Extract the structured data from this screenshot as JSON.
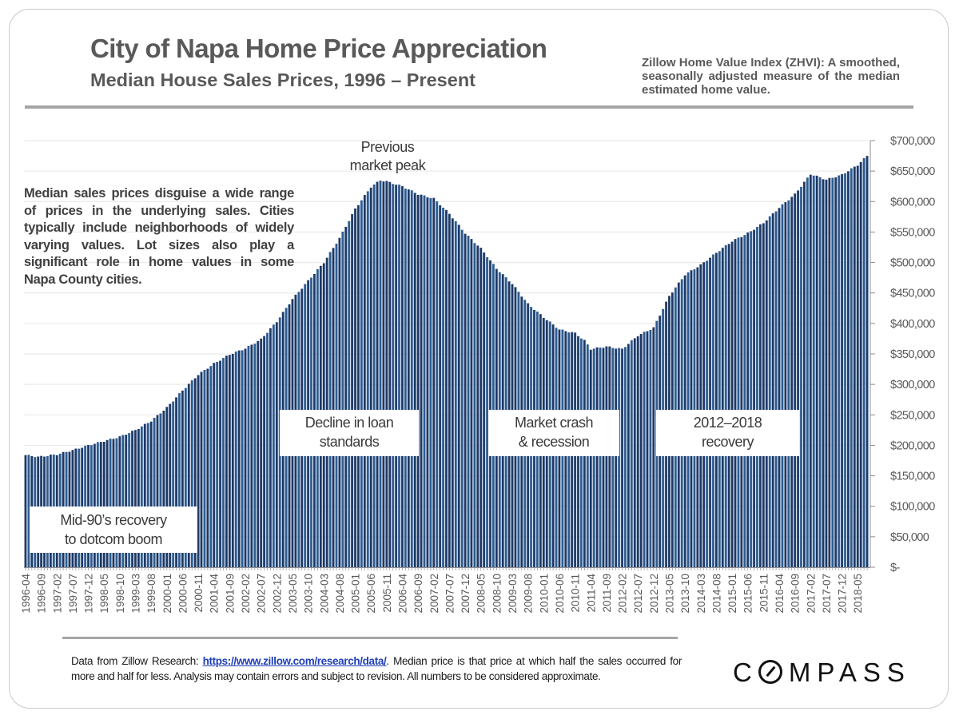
{
  "header": {
    "title": "City of Napa Home Price Appreciation",
    "subtitle": "Median House Sales Prices, 1996 – Present",
    "zhvi_note": "Zillow Home Value Index (ZHVI): A smoothed, seasonally adjusted measure of the median estimated home value."
  },
  "side_note": "Median sales prices disguise a wide range of prices in the underlying sales. Cities typically include neighborhoods of widely varying values. Lot sizes also play a significant role in home values in some Napa County cities.",
  "annotations": {
    "peak": [
      "Previous",
      "market peak"
    ],
    "mid90s": [
      "Mid-90’s recovery",
      "to dotcom boom"
    ],
    "loan": [
      "Decline in loan",
      "standards"
    ],
    "crash": [
      "Market crash",
      "& recession"
    ],
    "recovery": [
      "2012–2018",
      "recovery"
    ]
  },
  "footer": {
    "note_prefix": "Data from Zillow Research: ",
    "link_text": "https://www.zillow.com/research/data/",
    "note_suffix": ". Median price is that price at which half the sales occurred for more and half for less. Analysis may contain errors and subject to revision. All numbers to be considered approximate.",
    "logo": "COMPASS"
  },
  "colors": {
    "bar_dark": "#1f3864",
    "bar_light": "#9dc3e6",
    "bar_mid": "#2e5b8f",
    "grid": "#e6e6e6",
    "text_gray": "#595959"
  },
  "chart_data": {
    "type": "bar",
    "title": "City of Napa Home Price Appreciation",
    "subtitle": "Median House Sales Prices, 1996 – Present",
    "xlabel": "",
    "ylabel": "",
    "x_start": "1996-04",
    "x_end": "2018-08",
    "frequency": "monthly",
    "ylim": [
      0,
      700000
    ],
    "y_ticks": [
      0,
      50000,
      100000,
      150000,
      200000,
      250000,
      300000,
      350000,
      400000,
      450000,
      500000,
      550000,
      600000,
      650000,
      700000
    ],
    "y_tick_labels": [
      "$-",
      "$50,000",
      "$100,000",
      "$150,000",
      "$200,000",
      "$250,000",
      "$300,000",
      "$350,000",
      "$400,000",
      "$450,000",
      "$500,000",
      "$550,000",
      "$600,000",
      "$650,000",
      "$700,000"
    ],
    "y_axis_side": "right",
    "grid": true,
    "x_tick_labels": [
      "1996-04",
      "1996-09",
      "1997-02",
      "1997-07",
      "1997-12",
      "1998-05",
      "1998-10",
      "1999-03",
      "1999-08",
      "2000-01",
      "2000-06",
      "2000-11",
      "2001-04",
      "2001-09",
      "2002-02",
      "2002-07",
      "2002-12",
      "2003-05",
      "2003-10",
      "2004-03",
      "2004-08",
      "2005-01",
      "2005-06",
      "2005-11",
      "2006-04",
      "2006-09",
      "2007-02",
      "2007-07",
      "2007-12",
      "2008-05",
      "2008-10",
      "2009-03",
      "2009-08",
      "2010-01",
      "2010-06",
      "2010-11",
      "2011-04",
      "2011-09",
      "2012-02",
      "2012-07",
      "2012-12",
      "2013-05",
      "2013-10",
      "2014-03",
      "2014-08",
      "2015-01",
      "2015-06",
      "2015-11",
      "2016-04",
      "2016-09",
      "2017-02",
      "2017-07",
      "2017-12",
      "2018-05"
    ],
    "anchor_values": [
      [
        "1996-04",
        184000
      ],
      [
        "1996-08",
        181000
      ],
      [
        "1997-02",
        185000
      ],
      [
        "1997-07",
        192000
      ],
      [
        "1997-12",
        200000
      ],
      [
        "1998-05",
        207000
      ],
      [
        "1998-10",
        214000
      ],
      [
        "1999-03",
        225000
      ],
      [
        "1999-08",
        240000
      ],
      [
        "2000-01",
        262000
      ],
      [
        "2000-06",
        290000
      ],
      [
        "2000-11",
        316000
      ],
      [
        "2001-04",
        334000
      ],
      [
        "2001-09",
        349000
      ],
      [
        "2002-02",
        359000
      ],
      [
        "2002-07",
        374000
      ],
      [
        "2002-12",
        403000
      ],
      [
        "2003-05",
        440000
      ],
      [
        "2003-10",
        470000
      ],
      [
        "2004-03",
        500000
      ],
      [
        "2004-08",
        540000
      ],
      [
        "2005-01",
        588000
      ],
      [
        "2005-06",
        624000
      ],
      [
        "2005-09",
        635000
      ],
      [
        "2005-11",
        633000
      ],
      [
        "2006-04",
        625000
      ],
      [
        "2006-09",
        612000
      ],
      [
        "2007-02",
        605000
      ],
      [
        "2007-07",
        580000
      ],
      [
        "2007-12",
        548000
      ],
      [
        "2008-05",
        523000
      ],
      [
        "2008-10",
        490000
      ],
      [
        "2009-03",
        465000
      ],
      [
        "2009-08",
        432000
      ],
      [
        "2010-01",
        410000
      ],
      [
        "2010-06",
        390000
      ],
      [
        "2010-11",
        384000
      ],
      [
        "2011-02",
        372000
      ],
      [
        "2011-04",
        358000
      ],
      [
        "2011-09",
        362000
      ],
      [
        "2012-02",
        358000
      ],
      [
        "2012-07",
        380000
      ],
      [
        "2012-12",
        393000
      ],
      [
        "2013-05",
        445000
      ],
      [
        "2013-10",
        480000
      ],
      [
        "2014-03",
        496000
      ],
      [
        "2014-08",
        516000
      ],
      [
        "2015-01",
        535000
      ],
      [
        "2015-06",
        548000
      ],
      [
        "2015-11",
        565000
      ],
      [
        "2016-04",
        590000
      ],
      [
        "2016-09",
        612000
      ],
      [
        "2017-02",
        645000
      ],
      [
        "2017-07",
        636000
      ],
      [
        "2017-12",
        644000
      ],
      [
        "2018-05",
        660000
      ],
      [
        "2018-08",
        675000
      ]
    ]
  }
}
